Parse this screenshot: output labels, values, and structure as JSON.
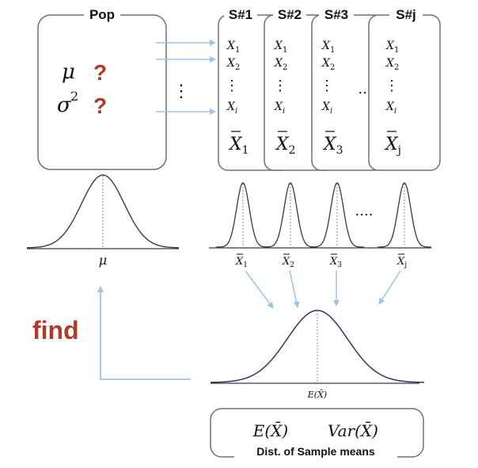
{
  "population": {
    "title": "Pop",
    "mu": "μ",
    "sigma": "σ",
    "sigma_power": "2",
    "unknown_mark": "?",
    "dots": "⋮",
    "curve_label": "μ"
  },
  "samples": [
    {
      "title": "S#1",
      "items": [
        "X",
        "X",
        "X"
      ],
      "subs": [
        "1",
        "2",
        "i"
      ],
      "mean": "X",
      "mean_sub": "1"
    },
    {
      "title": "S#2",
      "items": [
        "X",
        "X",
        "X"
      ],
      "subs": [
        "1",
        "2",
        "i"
      ],
      "mean": "X",
      "mean_sub": "2"
    },
    {
      "title": "S#3",
      "items": [
        "X",
        "X",
        "X"
      ],
      "subs": [
        "1",
        "2",
        "i"
      ],
      "mean": "X",
      "mean_sub": "3"
    },
    {
      "title": "S#j",
      "items": [
        "X",
        "X",
        "X"
      ],
      "subs": [
        "1",
        "2",
        "i"
      ],
      "mean": "X",
      "mean_sub": "j"
    }
  ],
  "sample_dots": "⋮",
  "ellipsis": "....",
  "sample_curve_labels": [
    {
      "base": "X",
      "sub": "1"
    },
    {
      "base": "X",
      "sub": "2"
    },
    {
      "base": "X",
      "sub": "3"
    },
    {
      "base": "X",
      "sub": "j"
    }
  ],
  "find_label": "find",
  "sampling_dist": {
    "axis_label": "E(X̄)",
    "box_title": "Dist. of Sample means",
    "expected": "E(X̄)",
    "variance": "Var(X̄)"
  },
  "colors": {
    "box_border": "#707070",
    "arrow": "#9cc3ea",
    "accent_red": "#b03a2a",
    "curve": "#3a3a3a",
    "sampling_curve": "#2c3860",
    "vline": "#888888"
  }
}
